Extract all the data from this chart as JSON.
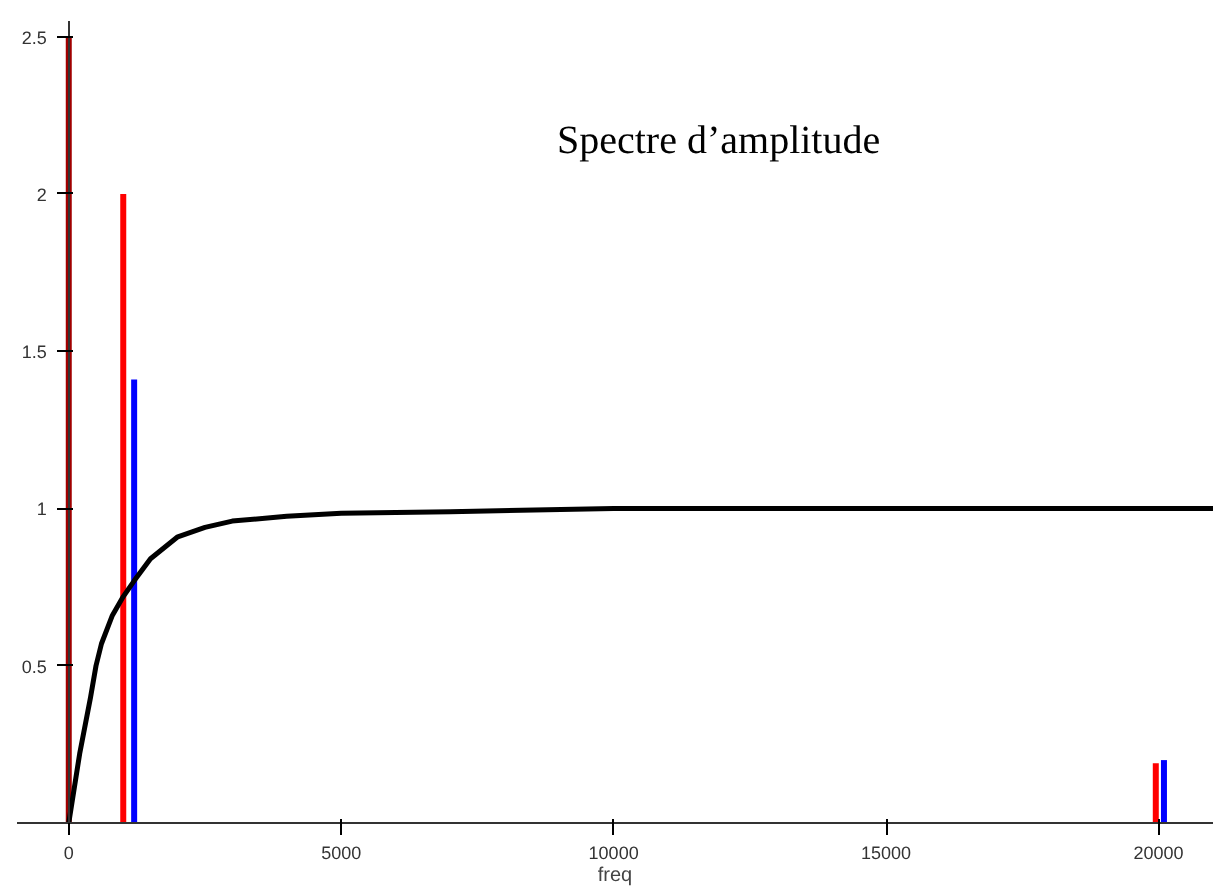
{
  "chart_data": {
    "type": "bar",
    "title": "Spectre d’amplitude",
    "xlabel": "freq",
    "xlim": [
      -950,
      21000
    ],
    "ylim": [
      0,
      2.55
    ],
    "xticks": [
      0,
      5000,
      10000,
      15000,
      20000
    ],
    "yticks": [
      0.5,
      1,
      1.5,
      2,
      2.5
    ],
    "grid": false,
    "series": [
      {
        "color": "#a00000",
        "x": [
          0
        ],
        "values": [
          2.5
        ]
      },
      {
        "color": "#ff0000",
        "x": [
          1000,
          19950
        ],
        "values": [
          2,
          0.19
        ]
      },
      {
        "color": "#0000ff",
        "x": [
          1200,
          20100
        ],
        "values": [
          1.41,
          0.2
        ]
      },
      {
        "type": "line",
        "color": "#000000",
        "x": [
          0,
          200,
          400,
          500,
          600,
          800,
          1000,
          1200,
          1500,
          2000,
          2500,
          3000,
          4000,
          5000,
          7000,
          10000,
          15000,
          21000
        ],
        "values": [
          0,
          0.22,
          0.4,
          0.5,
          0.57,
          0.66,
          0.72,
          0.77,
          0.84,
          0.91,
          0.94,
          0.96,
          0.975,
          0.985,
          0.99,
          1.0,
          1.0,
          1.0
        ]
      }
    ]
  }
}
